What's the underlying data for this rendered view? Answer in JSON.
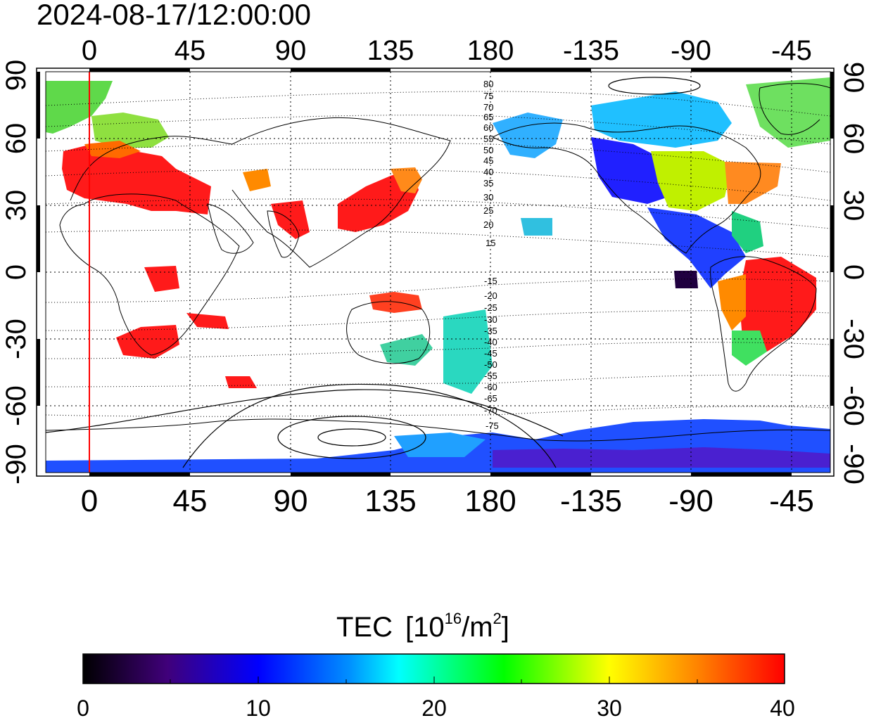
{
  "title": "2024-08-17/12:00:00",
  "map": {
    "top_lon_labels": [
      "0",
      "45",
      "90",
      "135",
      "180",
      "-135",
      "-90",
      "-45"
    ],
    "bottom_lon_labels": [
      "0",
      "45",
      "90",
      "135",
      "180",
      "-135",
      "-90",
      "-45"
    ],
    "left_lat_labels": [
      "90",
      "60",
      "30",
      "0",
      "-30",
      "-60",
      "-90"
    ],
    "right_lat_labels": [
      "90",
      "60",
      "30",
      "0",
      "-30",
      "-60",
      "-90"
    ],
    "magnetic_latitude_labels_north": [
      "80",
      "75",
      "70",
      "65",
      "60",
      "55",
      "50",
      "45",
      "40",
      "35",
      "30",
      "25",
      "20",
      "15"
    ],
    "magnetic_latitude_labels_south": [
      "-15",
      "-20",
      "-25",
      "-30",
      "-35",
      "-40",
      "-45",
      "-50",
      "-55",
      "-60",
      "-65",
      "-70",
      "-75"
    ],
    "colors": {
      "meridian_marker": "#ff0000",
      "grid": "#000000",
      "frame": "#000000"
    }
  },
  "colorbar": {
    "label": "TEC",
    "unit_base": "[10",
    "unit_exp": "16",
    "unit_mid": "/m",
    "unit_exp2": "2",
    "unit_end": "]",
    "ticks": [
      "0",
      "10",
      "20",
      "30",
      "40"
    ],
    "min": 0,
    "max": 40,
    "colors": [
      "#000000",
      "#40007a",
      "#0000ff",
      "#00ffff",
      "#00ff00",
      "#ffff00",
      "#ff7f00",
      "#ff0000"
    ]
  }
}
